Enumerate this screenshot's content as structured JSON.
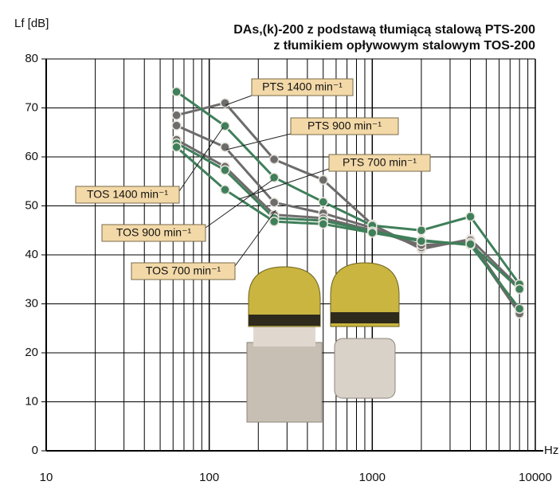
{
  "chart_data": {
    "type": "line",
    "title": "DAs,(k)-200 z podstawą tłumiącą stalową PTS-200",
    "subtitle": "z tłumikiem opływowym stalowym TOS-200",
    "y_label": "Lf [dB]",
    "x_label": "Hz",
    "x": [
      63,
      125,
      250,
      500,
      1000,
      2000,
      4000,
      8000
    ],
    "log_x": true,
    "grid": true,
    "xlim": [
      10,
      10000
    ],
    "xticks": [
      10,
      100,
      1000,
      10000
    ],
    "xminor_ticks": [
      20,
      30,
      40,
      50,
      60,
      70,
      80,
      90,
      200,
      300,
      400,
      500,
      600,
      700,
      800,
      900,
      2000,
      3000,
      4000,
      5000,
      6000,
      7000,
      8000,
      9000
    ],
    "ylim": [
      0,
      80
    ],
    "yticks": [
      0,
      10,
      20,
      30,
      40,
      50,
      60,
      70,
      80
    ],
    "series": [
      {
        "name": "PTS 1400 min⁻¹",
        "color": "#6e6b6b",
        "values": [
          68.5,
          71,
          59.5,
          55.3,
          46.2,
          41.2,
          43.2,
          33.3
        ]
      },
      {
        "name": "PTS 900 min⁻¹",
        "color": "#6e6b6b",
        "values": [
          66.4,
          62,
          50.7,
          48.5,
          45.5,
          41.5,
          43,
          28.5
        ]
      },
      {
        "name": "PTS 700 min⁻¹",
        "color": "#6e6b6b",
        "values": [
          63.5,
          58,
          48.2,
          47.5,
          45,
          42,
          42.5,
          28
        ]
      },
      {
        "name": "TOS 1400 min⁻¹",
        "color": "#3f7f5a",
        "values": [
          73.3,
          66.3,
          55.8,
          50.8,
          46,
          45,
          47.8,
          34
        ]
      },
      {
        "name": "TOS 900 min⁻¹",
        "color": "#3f7f5a",
        "values": [
          62.8,
          57.3,
          47.5,
          47,
          44.8,
          43,
          42,
          29
        ]
      },
      {
        "name": "TOS 700 min⁻¹",
        "color": "#3f7f5a",
        "values": [
          62,
          53.3,
          46.8,
          46.3,
          44.5,
          42.8,
          42.2,
          33
        ]
      }
    ]
  }
}
